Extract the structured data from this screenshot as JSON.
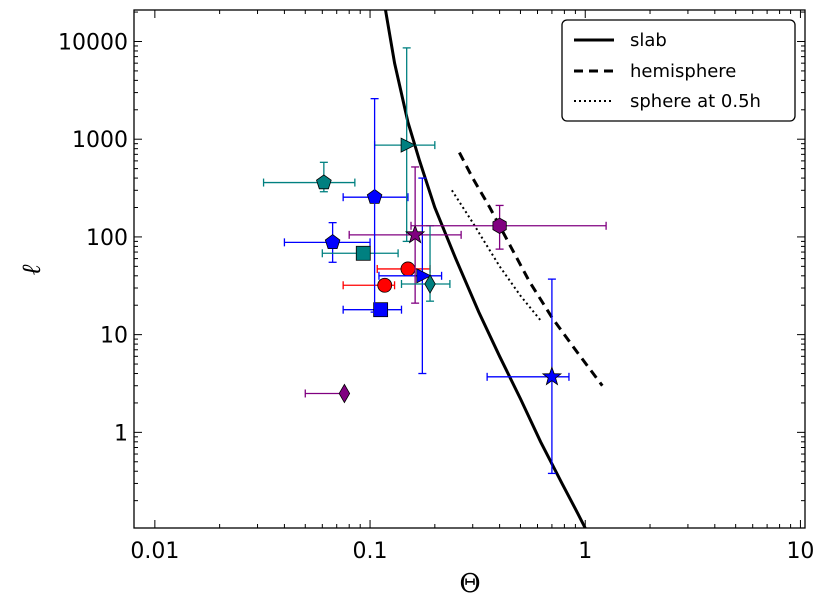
{
  "chart_data": {
    "type": "scatter",
    "xscale": "log",
    "yscale": "log",
    "xlim": [
      0.008,
      10.5
    ],
    "ylim": [
      0.105,
      21000
    ],
    "xlabel": "Θ",
    "ylabel": "ℓ",
    "x_ticks": [
      {
        "value": 0.01,
        "label": "0.01"
      },
      {
        "value": 0.1,
        "label": "0.1"
      },
      {
        "value": 1,
        "label": "1"
      },
      {
        "value": 10,
        "label": "10"
      }
    ],
    "y_ticks": [
      {
        "value": 1,
        "label": "1"
      },
      {
        "value": 10,
        "label": "10"
      },
      {
        "value": 100,
        "label": "100"
      },
      {
        "value": 1000,
        "label": "1000"
      },
      {
        "value": 10000,
        "label": "10000"
      }
    ],
    "legend": {
      "position": "top-right",
      "entries": [
        {
          "label": "slab",
          "style": "solid"
        },
        {
          "label": "hemisphere",
          "style": "dashed"
        },
        {
          "label": "sphere at 0.5h",
          "style": "dotted"
        }
      ]
    },
    "lines": [
      {
        "name": "slab",
        "style": "solid",
        "x": [
          0.118,
          0.13,
          0.15,
          0.17,
          0.2,
          0.25,
          0.32,
          0.4,
          0.5,
          0.62,
          0.78,
          0.92,
          1.0
        ],
        "y": [
          21000,
          6000,
          1500,
          600,
          200,
          60,
          17,
          6,
          2.2,
          0.8,
          0.3,
          0.15,
          0.105
        ]
      },
      {
        "name": "hemisphere",
        "style": "dashed",
        "x": [
          0.26,
          0.3,
          0.36,
          0.45,
          0.55,
          0.7,
          0.9,
          1.2
        ],
        "y": [
          730,
          400,
          200,
          80,
          35,
          15,
          7,
          3
        ]
      },
      {
        "name": "sphere at 0.5h",
        "style": "dotted",
        "x": [
          0.24,
          0.3,
          0.4,
          0.5,
          0.62
        ],
        "y": [
          300,
          140,
          50,
          25,
          14
        ]
      }
    ],
    "points": [
      {
        "x": 0.061,
        "y": 360,
        "xerr": [
          0.032,
          0.085
        ],
        "yerr": [
          290,
          580
        ],
        "marker": "pentagon",
        "color": "#008080"
      },
      {
        "x": 0.105,
        "y": 255,
        "xerr": [
          0.075,
          0.15
        ],
        "yerr": null,
        "marker": "pentagon",
        "color": "#0000ff"
      },
      {
        "x": 0.067,
        "y": 88,
        "xerr": [
          0.04,
          0.1
        ],
        "yerr": [
          55,
          140
        ],
        "marker": "pentagon",
        "color": "#0000ff"
      },
      {
        "x": 0.093,
        "y": 68,
        "xerr": [
          0.06,
          0.135
        ],
        "yerr": null,
        "marker": "square",
        "color": "#008080"
      },
      {
        "x": 0.15,
        "y": 47,
        "xerr": [
          0.108,
          0.19
        ],
        "yerr": null,
        "marker": "circle",
        "color": "#ff0000"
      },
      {
        "x": 0.117,
        "y": 32,
        "xerr": [
          0.075,
          0.13
        ],
        "yerr": null,
        "marker": "circle",
        "color": "#ff0000"
      },
      {
        "x": 0.112,
        "y": 18,
        "xerr": [
          0.075,
          0.14
        ],
        "yerr": null,
        "marker": "square",
        "color": "#0000ff"
      },
      {
        "x": 0.175,
        "y": 40,
        "xerr": [
          0.11,
          0.215
        ],
        "yerr": [
          4,
          400
        ],
        "marker": "triangle-right",
        "color": "#0000ff"
      },
      {
        "x": 0.148,
        "y": 870,
        "xerr": [
          0.105,
          0.2
        ],
        "yerr": [
          90,
          8600
        ],
        "marker": "triangle-right",
        "color": "#008080"
      },
      {
        "x": 0.162,
        "y": 105,
        "xerr": [
          0.08,
          0.265
        ],
        "yerr": [
          21,
          520
        ],
        "marker": "star",
        "color": "#800080"
      },
      {
        "x": 0.19,
        "y": 33,
        "xerr": [
          0.14,
          0.235
        ],
        "yerr": [
          22,
          130
        ],
        "marker": "diamond",
        "color": "#008080"
      },
      {
        "x": 0.105,
        "y": 38,
        "xerr": null,
        "yerr": [
          17,
          2600
        ],
        "marker": "none",
        "color": "#0000ff"
      },
      {
        "x": 0.4,
        "y": 130,
        "xerr": [
          0.155,
          1.25
        ],
        "yerr": [
          75,
          210
        ],
        "marker": "hexagon",
        "color": "#800080"
      },
      {
        "x": 0.7,
        "y": 3.7,
        "xerr": [
          0.35,
          0.84
        ],
        "yerr": [
          0.38,
          37
        ],
        "marker": "star",
        "color": "#0000ff"
      },
      {
        "x": 0.076,
        "y": 2.5,
        "xerr": [
          0.05,
          0.078
        ],
        "yerr": null,
        "marker": "diamond",
        "color": "#800080"
      }
    ]
  }
}
